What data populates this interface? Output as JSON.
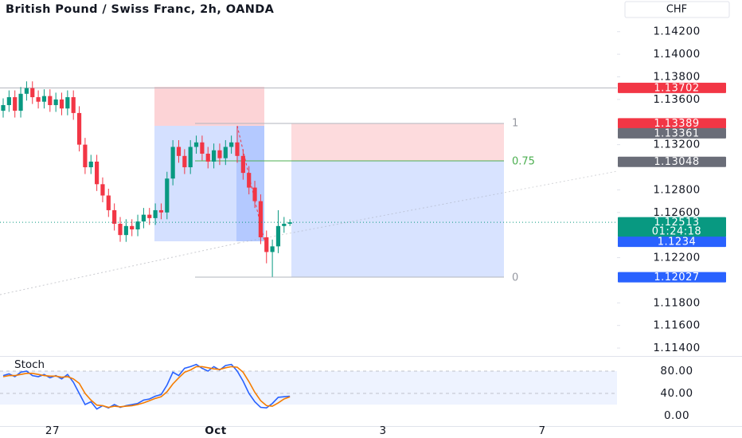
{
  "chart_data": {
    "type": "candlestick",
    "title": "British Pound / Swiss Franc, 2h, OANDA",
    "currency": "CHF",
    "ylim": [
      1.1133,
      1.1448
    ],
    "yticks": [
      {
        "value": 1.142,
        "label": "1.14200"
      },
      {
        "value": 1.14,
        "label": "1.14000"
      },
      {
        "value": 1.138,
        "label": "1.13800"
      },
      {
        "value": 1.136,
        "label": "1.13600"
      },
      {
        "value": 1.132,
        "label": "1.13200"
      },
      {
        "value": 1.128,
        "label": "1.12800"
      },
      {
        "value": 1.126,
        "label": "1.12600"
      },
      {
        "value": 1.122,
        "label": "1.12200"
      },
      {
        "value": 1.118,
        "label": "1.11800"
      },
      {
        "value": 1.116,
        "label": "1.11600"
      },
      {
        "value": 1.114,
        "label": "1.11400"
      }
    ],
    "up_color": "#089981",
    "down_color": "#f23645",
    "open": [
      1.135,
      1.1355,
      1.1362,
      1.135,
      1.1365,
      1.137,
      1.1362,
      1.1358,
      1.1363,
      1.1355,
      1.136,
      1.1352,
      1.1362,
      1.1348,
      1.132,
      1.13,
      1.1305,
      1.1285,
      1.1275,
      1.1262,
      1.125,
      1.124,
      1.1248,
      1.1245,
      1.1252,
      1.1258,
      1.1255,
      1.1262,
      1.126,
      1.129,
      1.1318,
      1.131,
      1.13,
      1.1318,
      1.1322,
      1.1312,
      1.1305,
      1.1315,
      1.1308,
      1.1318,
      1.1322,
      1.131,
      1.1295,
      1.1282,
      1.127,
      1.1238,
      1.1225,
      1.123,
      1.1248,
      1.125
    ],
    "high": [
      1.1361,
      1.1368,
      1.1368,
      1.1371,
      1.1376,
      1.1376,
      1.1368,
      1.1369,
      1.1369,
      1.1366,
      1.1366,
      1.1368,
      1.1368,
      1.1354,
      1.1326,
      1.1311,
      1.1311,
      1.1291,
      1.1281,
      1.1268,
      1.1256,
      1.1254,
      1.1254,
      1.1258,
      1.1264,
      1.1264,
      1.1268,
      1.1268,
      1.1296,
      1.1324,
      1.1324,
      1.1316,
      1.1324,
      1.1328,
      1.1328,
      1.1318,
      1.1321,
      1.1321,
      1.1324,
      1.1328,
      1.1336,
      1.1316,
      1.1301,
      1.1288,
      1.1276,
      1.1244,
      1.1236,
      1.1262,
      1.1256,
      1.1254
    ],
    "low": [
      1.1344,
      1.1349,
      1.1344,
      1.1344,
      1.1359,
      1.1356,
      1.1352,
      1.1352,
      1.1349,
      1.1349,
      1.1346,
      1.1346,
      1.1342,
      1.1314,
      1.1294,
      1.1294,
      1.1279,
      1.1269,
      1.1256,
      1.1244,
      1.1234,
      1.1234,
      1.1239,
      1.1239,
      1.1246,
      1.1249,
      1.1249,
      1.1254,
      1.1254,
      1.1284,
      1.1304,
      1.1294,
      1.1294,
      1.1312,
      1.1306,
      1.1299,
      1.1299,
      1.1302,
      1.1302,
      1.1312,
      1.1304,
      1.1289,
      1.1276,
      1.1264,
      1.1232,
      1.1215,
      1.1203,
      1.1224,
      1.1242,
      1.1248
    ],
    "close": [
      1.1355,
      1.1362,
      1.135,
      1.1365,
      1.137,
      1.1362,
      1.1358,
      1.1363,
      1.1355,
      1.136,
      1.1352,
      1.1362,
      1.1348,
      1.132,
      1.13,
      1.1305,
      1.1285,
      1.1275,
      1.1262,
      1.125,
      1.124,
      1.1248,
      1.1245,
      1.1252,
      1.1258,
      1.1255,
      1.1262,
      1.126,
      1.129,
      1.1318,
      1.131,
      1.13,
      1.1318,
      1.1322,
      1.1312,
      1.1305,
      1.1315,
      1.1308,
      1.1318,
      1.1322,
      1.131,
      1.1295,
      1.1282,
      1.127,
      1.1238,
      1.1225,
      1.123,
      1.1248,
      1.125,
      1.12513
    ],
    "price_tags": [
      {
        "value": 1.13702,
        "color": "#f23645"
      },
      {
        "value": 1.13389,
        "color": "#f23645"
      },
      {
        "value": 1.13361,
        "color": "#6a6d78"
      },
      {
        "value": 1.13048,
        "color": "#6a6d78"
      },
      {
        "value": 1.12513,
        "color": "#089981",
        "countdown": "01:24:18"
      },
      {
        "value": 1.1234,
        "color": "#2962ff"
      },
      {
        "value": 1.12027,
        "color": "#2962ff"
      }
    ],
    "fib_labels": [
      "1",
      "0.75",
      "0"
    ],
    "time_labels": [
      "27",
      "Oct",
      "3",
      "7"
    ],
    "indicator": {
      "name": "Stoch",
      "ylim": [
        0,
        100
      ],
      "yticks": [
        {
          "value": 0,
          "label": "0.00"
        },
        {
          "value": 40,
          "label": "40.00"
        },
        {
          "value": 80,
          "label": "80.00"
        }
      ],
      "series": [
        {
          "color": "#2962ff",
          "values": [
            72,
            75,
            70,
            78,
            80,
            72,
            70,
            74,
            68,
            72,
            66,
            74,
            60,
            40,
            20,
            25,
            12,
            18,
            14,
            20,
            15,
            18,
            20,
            22,
            28,
            30,
            35,
            38,
            55,
            78,
            72,
            85,
            88,
            92,
            85,
            80,
            88,
            82,
            90,
            92,
            80,
            62,
            40,
            25,
            15,
            14,
            22,
            33,
            34,
            35
          ]
        },
        {
          "color": "#f57c00",
          "values": [
            70,
            72,
            72,
            74,
            76,
            76,
            74,
            72,
            71,
            71,
            69,
            70,
            66,
            58,
            40,
            28,
            19,
            18,
            15,
            17,
            16,
            17,
            18,
            20,
            23,
            27,
            31,
            34,
            43,
            57,
            68,
            78,
            82,
            88,
            88,
            86,
            84,
            83,
            86,
            88,
            87,
            78,
            61,
            42,
            27,
            18,
            17,
            23,
            30,
            34
          ]
        }
      ]
    }
  }
}
